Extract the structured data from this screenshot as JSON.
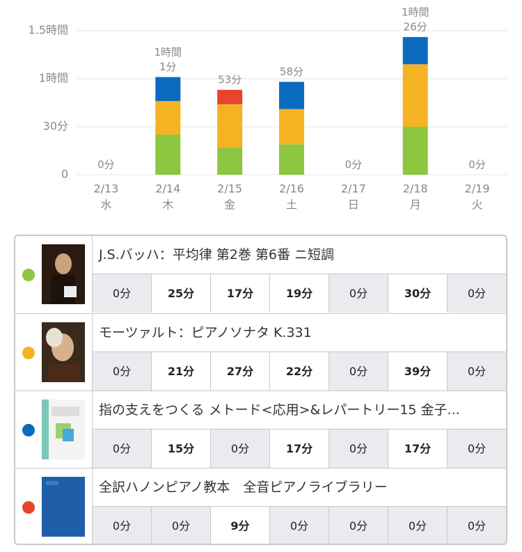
{
  "chart_data": {
    "type": "bar",
    "stacked": true,
    "grid": true,
    "categories": [
      "2/13",
      "2/14",
      "2/15",
      "2/16",
      "2/17",
      "2/18",
      "2/19"
    ],
    "weekdays": [
      "水",
      "木",
      "金",
      "土",
      "日",
      "月",
      "火"
    ],
    "series": [
      {
        "name": "J.S.バッハ：平均律 第2巻 第6番 ニ短調",
        "color": "#8dc63f",
        "values": [
          0,
          25,
          17,
          19,
          0,
          30,
          0
        ],
        "value_labels": [
          "0分",
          "25分",
          "17分",
          "19分",
          "0分",
          "30分",
          "0分"
        ]
      },
      {
        "name": "モーツァルト：ピアノソナタ K.331",
        "color": "#f5b324",
        "values": [
          0,
          21,
          27,
          22,
          0,
          39,
          0
        ],
        "value_labels": [
          "0分",
          "21分",
          "27分",
          "22分",
          "0分",
          "39分",
          "0分"
        ]
      },
      {
        "name": "指の支えをつくる メトード<応用>&レパートリー15 金子...",
        "color": "#0b6bbf",
        "values": [
          0,
          15,
          0,
          17,
          0,
          17,
          0
        ],
        "value_labels": [
          "0分",
          "15分",
          "0分",
          "17分",
          "0分",
          "17分",
          "0分"
        ]
      },
      {
        "name": "全訳ハノンピアノ教本　全音ピアノライブラリー",
        "color": "#e8432d",
        "values": [
          0,
          0,
          9,
          0,
          0,
          0,
          0
        ],
        "value_labels": [
          "0分",
          "0分",
          "9分",
          "0分",
          "0分",
          "0分",
          "0分"
        ]
      }
    ],
    "totals": [
      0,
      61,
      53,
      58,
      0,
      86,
      0
    ],
    "total_labels": [
      [
        "0分"
      ],
      [
        "1時間",
        "1分"
      ],
      [
        "53分"
      ],
      [
        "58分"
      ],
      [
        "0分"
      ],
      [
        "1時間",
        "26分"
      ],
      [
        "0分"
      ]
    ],
    "ylim": [
      0,
      100
    ],
    "yticks": [
      0,
      {
        "value": 30,
        "label": "30分"
      },
      {
        "value": 60,
        "label": "1時間"
      },
      {
        "value": 90,
        "label": "1.5時間"
      }
    ]
  }
}
